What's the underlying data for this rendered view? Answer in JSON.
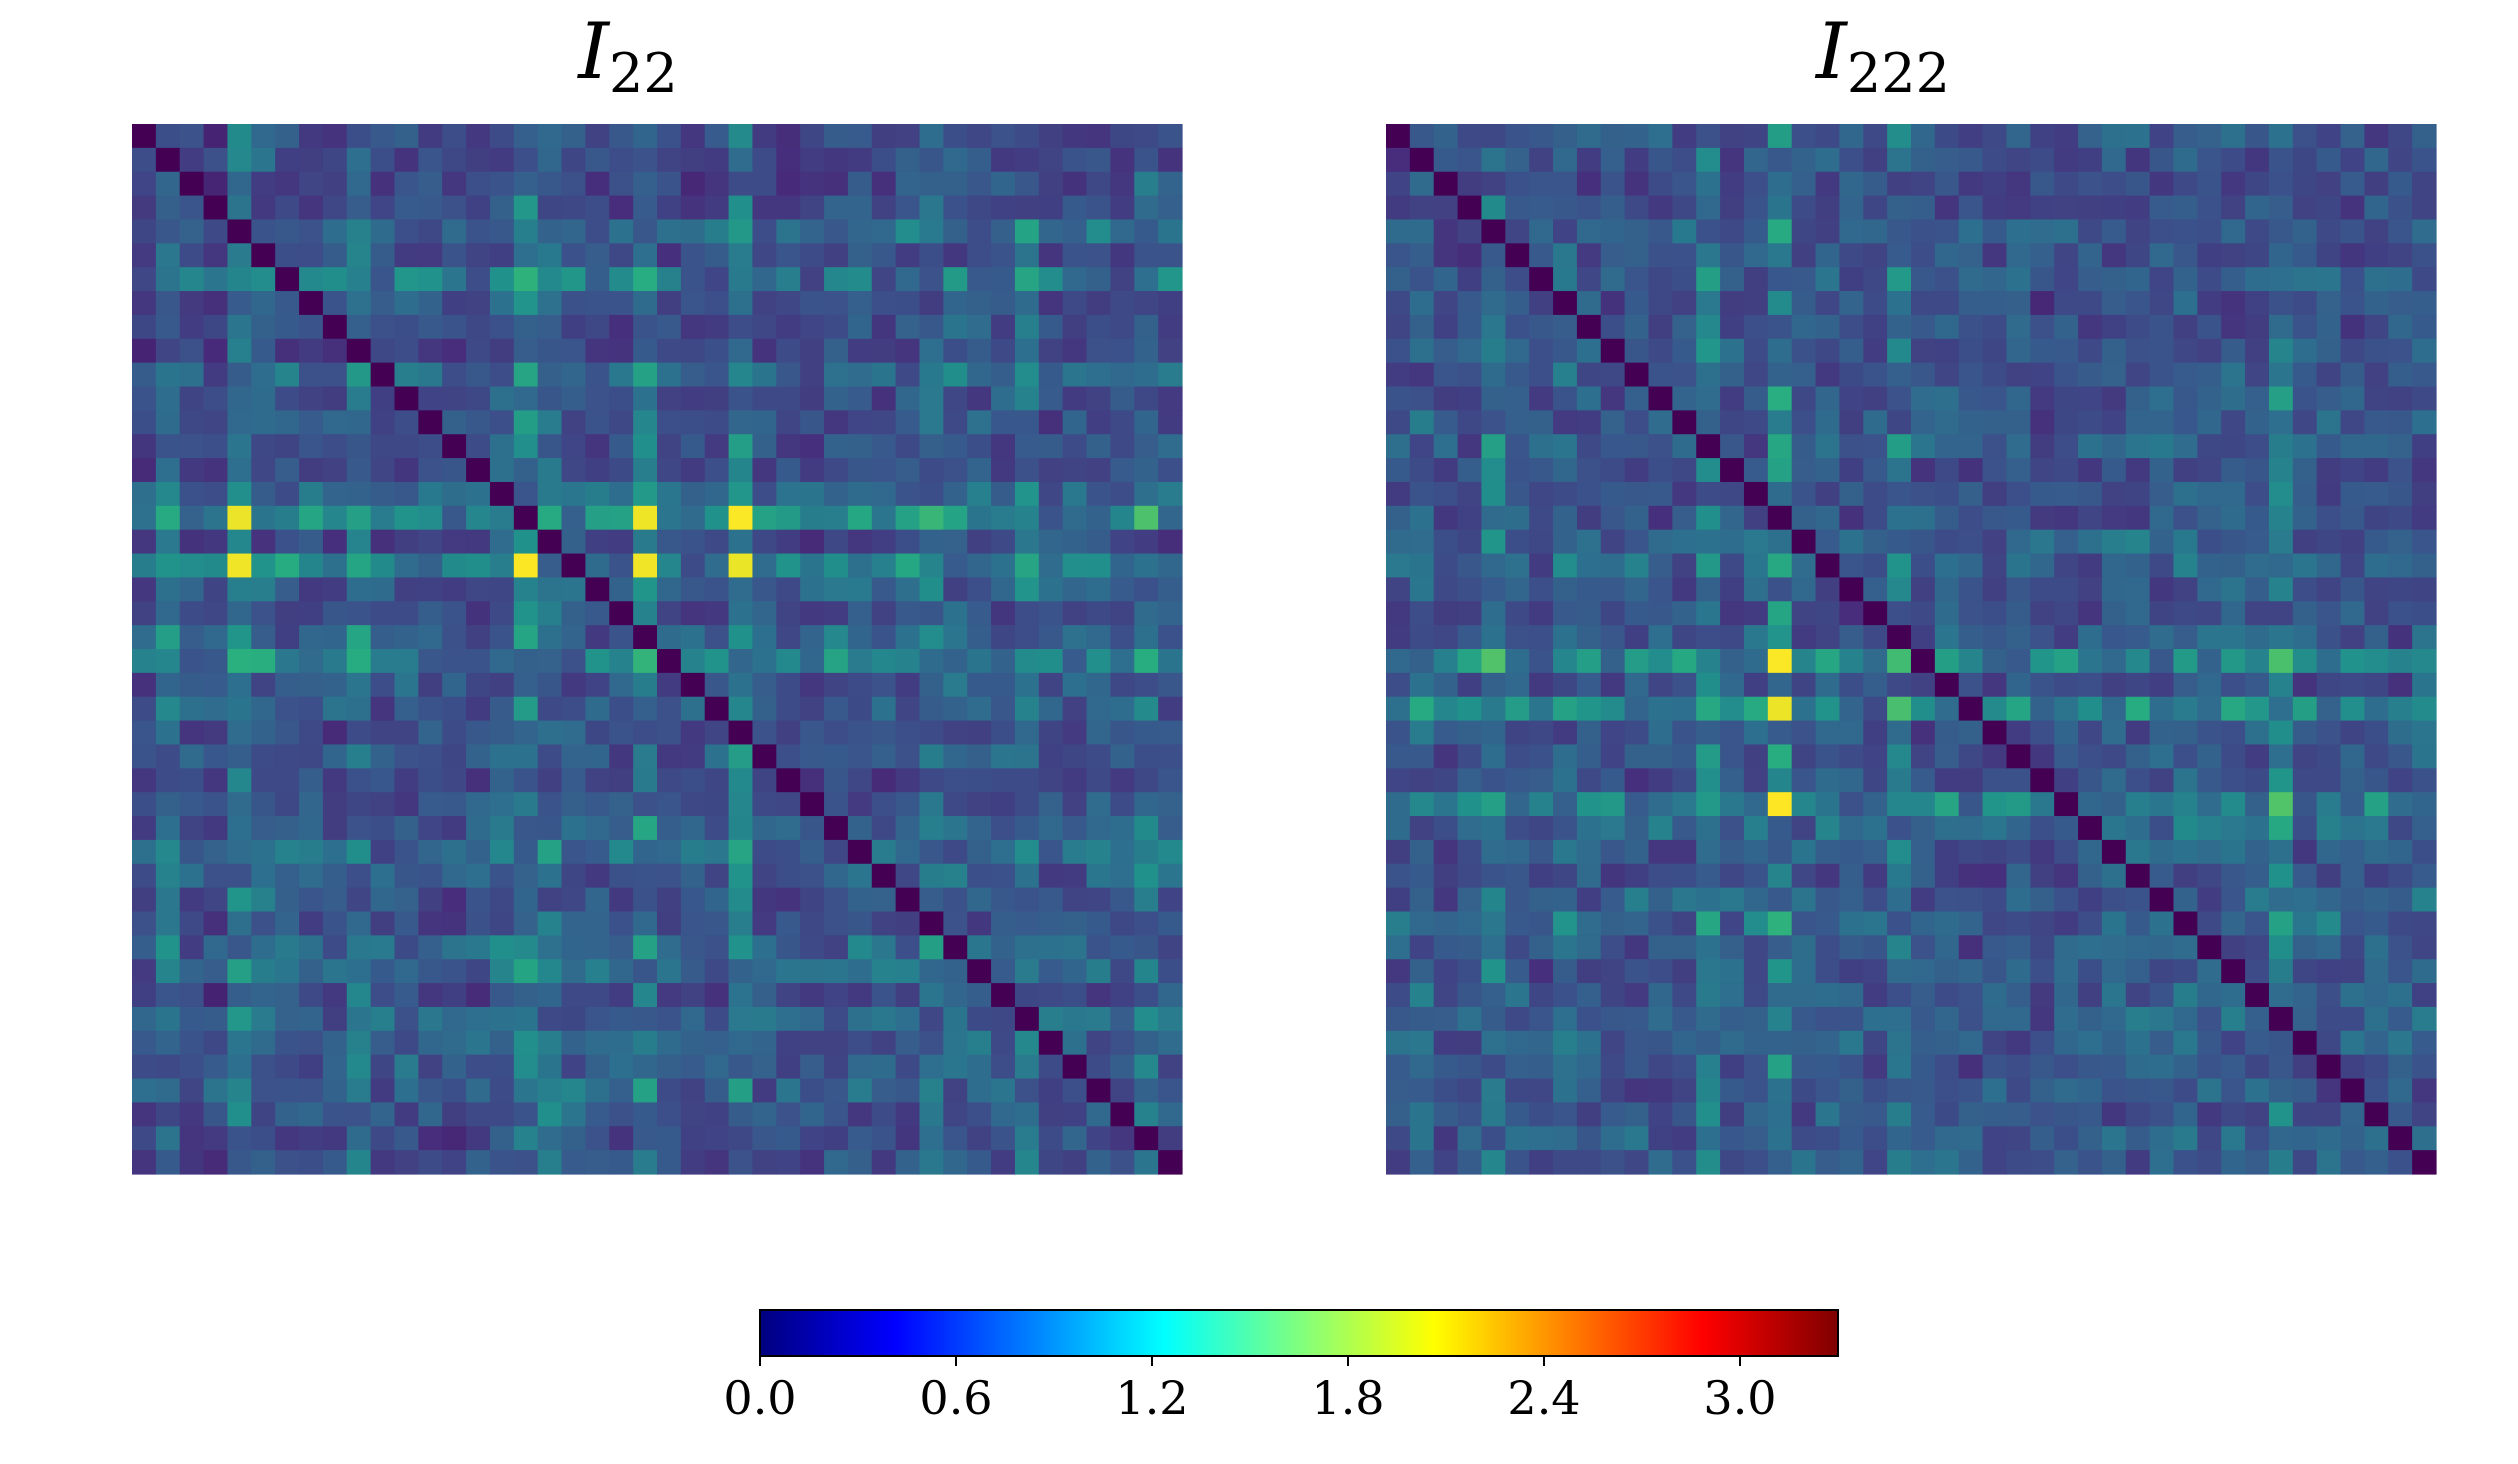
{
  "chart_data": [
    {
      "type": "heatmap",
      "title": "I",
      "title_subscript": "22",
      "size": 44,
      "xlabel": "",
      "ylabel": "",
      "axes_visible": false,
      "grid": false,
      "colormap": "viridis",
      "background_level": 0.45,
      "row_profile": [
        0.12,
        0.05,
        0.1,
        0.08,
        0.6,
        0.15,
        0.7,
        0.12,
        0.15,
        0.05,
        0.5,
        0.2,
        0.25,
        0.2,
        0.15,
        0.45,
        1.0,
        0.1,
        0.95,
        0.4,
        0.15,
        0.5,
        0.85,
        0.25,
        0.4,
        0.15,
        0.3,
        0.1,
        0.2,
        0.35,
        0.6,
        0.4,
        0.25,
        0.2,
        0.55,
        0.5,
        0.1,
        0.45,
        0.35,
        0.35,
        0.5,
        0.3,
        0.15,
        0.2
      ],
      "col_profile": [
        0.05,
        0.6,
        0.1,
        0.05,
        0.8,
        0.45,
        0.3,
        0.2,
        0.15,
        0.75,
        0.2,
        0.3,
        0.2,
        0.1,
        0.2,
        0.4,
        0.85,
        0.6,
        0.3,
        0.2,
        0.2,
        0.8,
        0.15,
        0.1,
        0.2,
        0.85,
        0.2,
        0.1,
        0.15,
        0.3,
        0.25,
        0.2,
        0.3,
        0.6,
        0.4,
        0.3,
        0.3,
        0.6,
        0.25,
        0.3,
        0.35,
        0.15,
        0.6,
        0.3
      ],
      "seed": 22
    },
    {
      "type": "heatmap",
      "title": "I",
      "title_subscript": "222",
      "size": 44,
      "xlabel": "",
      "ylabel": "",
      "axes_visible": false,
      "grid": false,
      "colormap": "viridis",
      "background_level": 0.45,
      "row_profile": [
        0.3,
        0.2,
        0.1,
        0.15,
        0.45,
        0.2,
        0.35,
        0.15,
        0.2,
        0.3,
        0.15,
        0.3,
        0.25,
        0.4,
        0.2,
        0.15,
        0.25,
        0.45,
        0.4,
        0.2,
        0.15,
        0.3,
        1.0,
        0.2,
        0.9,
        0.25,
        0.35,
        0.2,
        0.95,
        0.5,
        0.3,
        0.2,
        0.4,
        0.55,
        0.3,
        0.25,
        0.3,
        0.4,
        0.35,
        0.2,
        0.3,
        0.2,
        0.35,
        0.3
      ],
      "col_profile": [
        0.2,
        0.5,
        0.1,
        0.15,
        0.75,
        0.3,
        0.2,
        0.5,
        0.3,
        0.2,
        0.3,
        0.25,
        0.2,
        0.75,
        0.3,
        0.3,
        1.0,
        0.3,
        0.35,
        0.25,
        0.2,
        0.7,
        0.25,
        0.3,
        0.2,
        0.2,
        0.3,
        0.15,
        0.2,
        0.2,
        0.3,
        0.35,
        0.3,
        0.35,
        0.3,
        0.35,
        0.25,
        0.75,
        0.3,
        0.3,
        0.25,
        0.3,
        0.25,
        0.35
      ],
      "seed": 222
    }
  ],
  "colorbar": {
    "colormap": "jet",
    "min": 0.0,
    "max": 3.3,
    "ticks": [
      0.0,
      0.6,
      1.2,
      1.8,
      2.4,
      3.0
    ],
    "tick_labels": [
      "0.0",
      "0.6",
      "1.2",
      "1.8",
      "2.4",
      "3.0"
    ],
    "orientation": "horizontal"
  },
  "colors": {
    "viridis_stops": [
      "#440154",
      "#472d7b",
      "#3b528b",
      "#2c728e",
      "#21918c",
      "#28ae80",
      "#5ec962",
      "#addc30",
      "#fde725"
    ],
    "jet_stops": [
      "#00007f",
      "#0000ff",
      "#007fff",
      "#00ffff",
      "#7fff7f",
      "#ffff00",
      "#ff7f00",
      "#ff0000",
      "#7f0000"
    ]
  }
}
